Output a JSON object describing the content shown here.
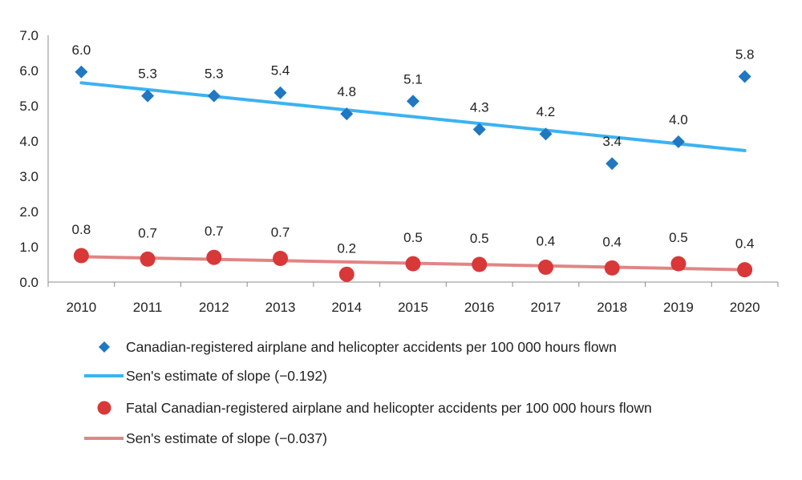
{
  "chart_data": {
    "type": "scatter",
    "title": "",
    "xlabel": "",
    "ylabel": "",
    "categories": [
      "2010",
      "2011",
      "2012",
      "2013",
      "2014",
      "2015",
      "2016",
      "2017",
      "2018",
      "2019",
      "2020"
    ],
    "ylim": [
      0,
      7
    ],
    "yticks": [
      "0.0",
      "1.0",
      "2.0",
      "3.0",
      "4.0",
      "5.0",
      "6.0",
      "7.0"
    ],
    "grid": false,
    "legend_position": "bottom",
    "series": [
      {
        "name": "Canadian-registered airplane and helicopter accidents per 100 000 hours flown",
        "kind": "points",
        "marker": "diamond",
        "color": "#1F78C1",
        "values": [
          5.96,
          5.28,
          5.28,
          5.37,
          4.77,
          5.13,
          4.33,
          4.2,
          3.36,
          3.98,
          5.83
        ],
        "labels": [
          "6.0",
          "5.3",
          "5.3",
          "5.4",
          "4.8",
          "5.1",
          "4.3",
          "4.2",
          "3.4",
          "4.0",
          "5.8"
        ]
      },
      {
        "name": "Sen's estimate of slope (−0.192)",
        "kind": "trend",
        "color": "#3BB3F0",
        "start": 5.65,
        "end": 3.73
      },
      {
        "name": "Fatal Canadian-registered airplane and helicopter accidents per 100 000 hours flown",
        "kind": "points",
        "marker": "circle",
        "color": "#D93838",
        "values": [
          0.75,
          0.65,
          0.7,
          0.67,
          0.22,
          0.52,
          0.5,
          0.42,
          0.4,
          0.52,
          0.35
        ],
        "labels": [
          "0.8",
          "0.7",
          "0.7",
          "0.7",
          "0.2",
          "0.5",
          "0.5",
          "0.4",
          "0.4",
          "0.5",
          "0.4"
        ]
      },
      {
        "name": "Sen's estimate of slope (−0.037)",
        "kind": "trend",
        "color": "#E08585",
        "start": 0.72,
        "end": 0.35
      }
    ]
  }
}
